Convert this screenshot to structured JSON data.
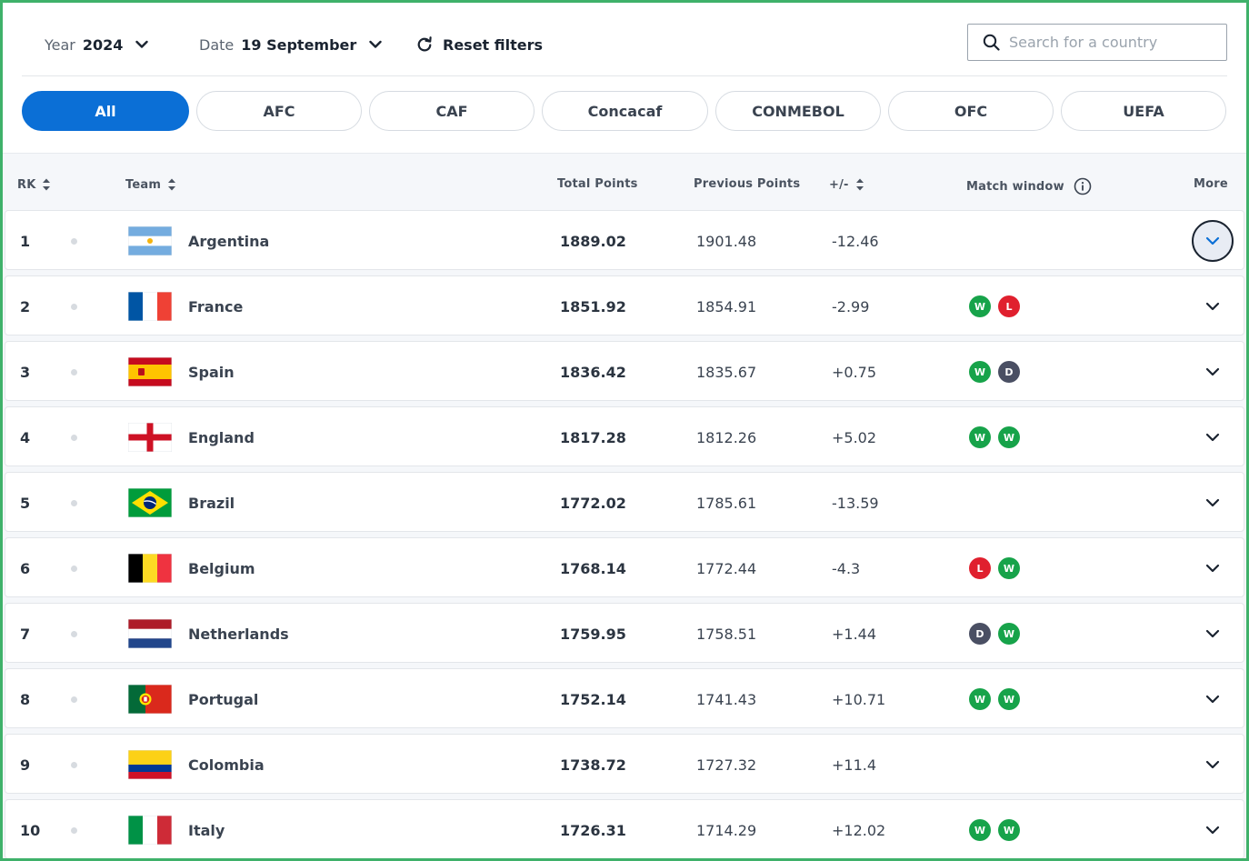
{
  "filters": {
    "year_label": "Year",
    "year_value": "2024",
    "date_label": "Date",
    "date_value": "19 September",
    "reset_label": "Reset filters",
    "search_placeholder": "Search for a country"
  },
  "confederations": [
    "All",
    "AFC",
    "CAF",
    "Concacaf",
    "CONMEBOL",
    "OFC",
    "UEFA"
  ],
  "active_confederation": "All",
  "table": {
    "headers": {
      "rank": "RK",
      "team": "Team",
      "total": "Total Points",
      "previous": "Previous Points",
      "diff": "+/-",
      "match_window": "Match window",
      "more": "More"
    },
    "rows": [
      {
        "rank": "1",
        "team": "Argentina",
        "total": "1889.02",
        "previous": "1901.48",
        "diff": "-12.46",
        "results": [],
        "flag": "argentina"
      },
      {
        "rank": "2",
        "team": "France",
        "total": "1851.92",
        "previous": "1854.91",
        "diff": "-2.99",
        "results": [
          "W",
          "L"
        ],
        "flag": "france"
      },
      {
        "rank": "3",
        "team": "Spain",
        "total": "1836.42",
        "previous": "1835.67",
        "diff": "+0.75",
        "results": [
          "W",
          "D"
        ],
        "flag": "spain"
      },
      {
        "rank": "4",
        "team": "England",
        "total": "1817.28",
        "previous": "1812.26",
        "diff": "+5.02",
        "results": [
          "W",
          "W"
        ],
        "flag": "england"
      },
      {
        "rank": "5",
        "team": "Brazil",
        "total": "1772.02",
        "previous": "1785.61",
        "diff": "-13.59",
        "results": [],
        "flag": "brazil"
      },
      {
        "rank": "6",
        "team": "Belgium",
        "total": "1768.14",
        "previous": "1772.44",
        "diff": "-4.3",
        "results": [
          "L",
          "W"
        ],
        "flag": "belgium"
      },
      {
        "rank": "7",
        "team": "Netherlands",
        "total": "1759.95",
        "previous": "1758.51",
        "diff": "+1.44",
        "results": [
          "D",
          "W"
        ],
        "flag": "netherlands"
      },
      {
        "rank": "8",
        "team": "Portugal",
        "total": "1752.14",
        "previous": "1741.43",
        "diff": "+10.71",
        "results": [
          "W",
          "W"
        ],
        "flag": "portugal"
      },
      {
        "rank": "9",
        "team": "Colombia",
        "total": "1738.72",
        "previous": "1727.32",
        "diff": "+11.4",
        "results": [],
        "flag": "colombia"
      },
      {
        "rank": "10",
        "team": "Italy",
        "total": "1726.31",
        "previous": "1714.29",
        "diff": "+12.02",
        "results": [
          "W",
          "W"
        ],
        "flag": "italy"
      }
    ]
  },
  "colors": {
    "accent": "#0b6fd6",
    "win": "#17a34a",
    "loss": "#e0202e",
    "draw": "#4a4f63",
    "frame": "#3fb16a"
  }
}
